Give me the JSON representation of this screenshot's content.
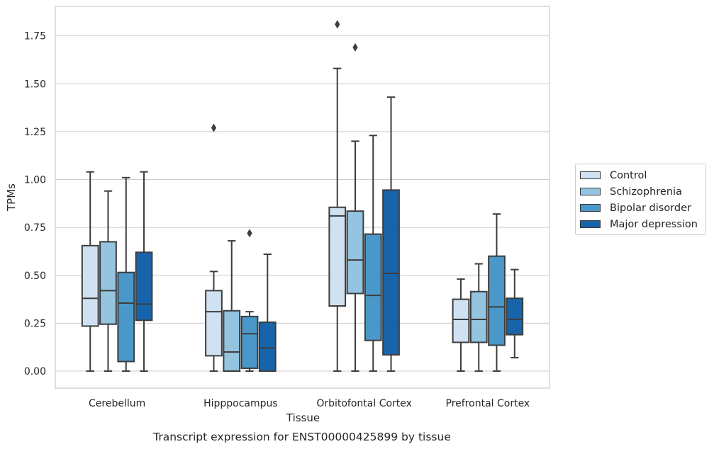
{
  "chart_data": {
    "type": "box",
    "title": "",
    "caption": "Transcript expression for ENST00000425899 by tissue",
    "xlabel": "Tissue",
    "ylabel": "TPMs",
    "ylim": [
      -0.09,
      1.9
    ],
    "yticks": [
      "0.00",
      "0.25",
      "0.50",
      "0.75",
      "1.00",
      "1.25",
      "1.50",
      "1.75"
    ],
    "categories": [
      "Cerebellum",
      "Hipppocampus",
      "Orbitofontal Cortex",
      "Prefrontal Cortex"
    ],
    "grid": "horizontal",
    "legend_position": "right",
    "series": [
      {
        "name": "Control",
        "color": "#d0e1f2",
        "boxes": [
          {
            "whislo": 0.0,
            "q1": 0.235,
            "med": 0.38,
            "q3": 0.655,
            "whishi": 1.04,
            "fliers": []
          },
          {
            "whislo": 0.0,
            "q1": 0.08,
            "med": 0.31,
            "q3": 0.42,
            "whishi": 0.52,
            "fliers": [
              1.27
            ]
          },
          {
            "whislo": 0.0,
            "q1": 0.34,
            "med": 0.81,
            "q3": 0.855,
            "whishi": 1.58,
            "fliers": [
              1.81
            ]
          },
          {
            "whislo": 0.0,
            "q1": 0.15,
            "med": 0.27,
            "q3": 0.375,
            "whishi": 0.48,
            "fliers": []
          }
        ]
      },
      {
        "name": "Schizophrenia",
        "color": "#94c4df",
        "boxes": [
          {
            "whislo": 0.0,
            "q1": 0.245,
            "med": 0.42,
            "q3": 0.675,
            "whishi": 0.94,
            "fliers": []
          },
          {
            "whislo": 0.0,
            "q1": 0.0,
            "med": 0.1,
            "q3": 0.315,
            "whishi": 0.68,
            "fliers": []
          },
          {
            "whislo": 0.0,
            "q1": 0.405,
            "med": 0.58,
            "q3": 0.835,
            "whishi": 1.2,
            "fliers": [
              1.69
            ]
          },
          {
            "whislo": 0.0,
            "q1": 0.15,
            "med": 0.27,
            "q3": 0.415,
            "whishi": 0.56,
            "fliers": []
          }
        ]
      },
      {
        "name": "Bipolar disorder",
        "color": "#4a98c9",
        "boxes": [
          {
            "whislo": 0.0,
            "q1": 0.05,
            "med": 0.355,
            "q3": 0.515,
            "whishi": 1.01,
            "fliers": []
          },
          {
            "whislo": 0.0,
            "q1": 0.015,
            "med": 0.195,
            "q3": 0.285,
            "whishi": 0.31,
            "fliers": [
              0.72
            ]
          },
          {
            "whislo": 0.0,
            "q1": 0.16,
            "med": 0.395,
            "q3": 0.715,
            "whishi": 1.23,
            "fliers": []
          },
          {
            "whislo": 0.0,
            "q1": 0.135,
            "med": 0.335,
            "q3": 0.6,
            "whishi": 0.82,
            "fliers": []
          }
        ]
      },
      {
        "name": "Major depression",
        "color": "#1764ab",
        "boxes": [
          {
            "whislo": 0.0,
            "q1": 0.265,
            "med": 0.35,
            "q3": 0.62,
            "whishi": 1.04,
            "fliers": []
          },
          {
            "whislo": 0.0,
            "q1": 0.0,
            "med": 0.12,
            "q3": 0.255,
            "whishi": 0.61,
            "fliers": []
          },
          {
            "whislo": 0.0,
            "q1": 0.085,
            "med": 0.51,
            "q3": 0.945,
            "whishi": 1.43,
            "fliers": []
          },
          {
            "whislo": 0.07,
            "q1": 0.19,
            "med": 0.27,
            "q3": 0.38,
            "whishi": 0.53,
            "fliers": []
          }
        ]
      }
    ]
  }
}
